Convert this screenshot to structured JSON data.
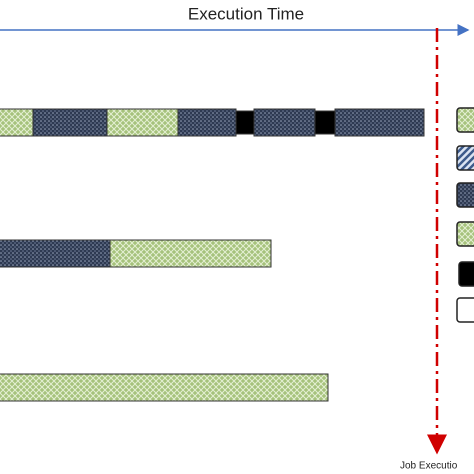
{
  "header": {
    "title": "Execution Time"
  },
  "deadline": {
    "label": "Job Executio"
  }
}
